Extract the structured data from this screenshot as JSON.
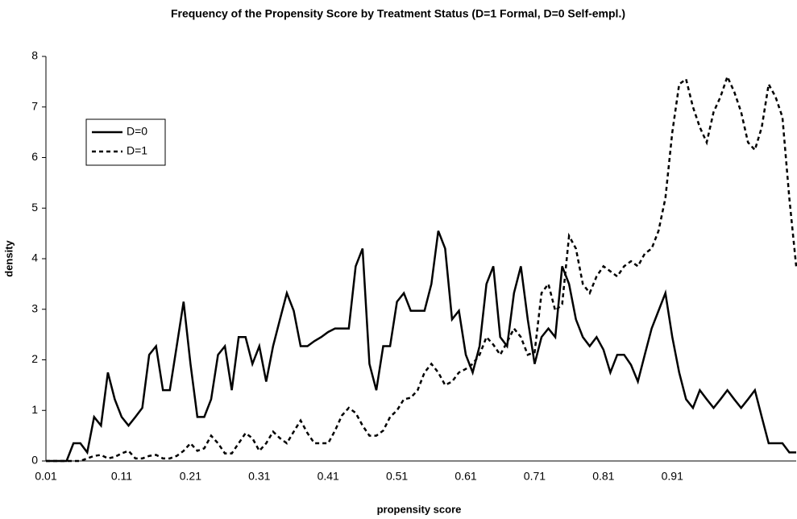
{
  "chart_data": {
    "type": "line",
    "title": "Frequency of the  Propensity Score by Treatment Status (D=1 Formal, D=0 Self-empl.)",
    "x_label": "propensity score",
    "y_label": "density",
    "categories": [
      "0.01",
      null,
      null,
      null,
      null,
      null,
      null,
      null,
      null,
      null,
      null,
      "0.11",
      null,
      null,
      null,
      null,
      null,
      null,
      null,
      null,
      null,
      "0.21",
      null,
      null,
      null,
      null,
      null,
      null,
      null,
      null,
      null,
      "0.31",
      null,
      null,
      null,
      null,
      null,
      null,
      null,
      null,
      null,
      "0.41",
      null,
      null,
      null,
      null,
      null,
      null,
      null,
      null,
      null,
      "0.51",
      null,
      null,
      null,
      null,
      null,
      null,
      null,
      null,
      null,
      "0.61",
      null,
      null,
      null,
      null,
      null,
      null,
      null,
      null,
      null,
      "0.71",
      null,
      null,
      null,
      null,
      null,
      null,
      null,
      null,
      null,
      "0.81",
      null,
      null,
      null,
      null,
      null,
      null,
      null,
      null,
      null,
      "0.91",
      null,
      null,
      null,
      null,
      null,
      null,
      null,
      null,
      null,
      null,
      null,
      null,
      null,
      null,
      null,
      null,
      null,
      null
    ],
    "series": [
      {
        "name": "D=0",
        "color": "#000000",
        "line_style": "solid",
        "values": [
          0,
          0,
          0,
          0,
          0.35,
          0.35,
          0.17,
          0.87,
          0.7,
          1.75,
          1.22,
          0.87,
          0.7,
          0.87,
          1.05,
          2.1,
          2.27,
          1.4,
          1.4,
          2.27,
          3.15,
          1.92,
          0.87,
          0.87,
          1.22,
          2.1,
          2.27,
          1.4,
          2.45,
          2.45,
          1.92,
          2.27,
          1.57,
          2.27,
          2.8,
          3.32,
          2.97,
          2.27,
          2.27,
          2.37,
          2.45,
          2.55,
          2.62,
          2.62,
          2.62,
          3.85,
          4.2,
          1.92,
          1.4,
          2.27,
          2.27,
          3.15,
          3.32,
          2.97,
          2.97,
          2.97,
          3.5,
          4.55,
          4.2,
          2.8,
          2.97,
          2.1,
          1.75,
          2.27,
          3.5,
          3.85,
          2.45,
          2.27,
          3.32,
          3.85,
          2.8,
          1.92,
          2.45,
          2.62,
          2.45,
          3.85,
          3.5,
          2.8,
          2.45,
          2.27,
          2.45,
          2.2,
          1.75,
          2.1,
          2.1,
          1.9,
          1.57,
          2.1,
          2.62,
          2.97,
          3.32,
          2.45,
          1.75,
          1.22,
          1.05,
          1.4,
          1.22,
          1.05,
          1.22,
          1.4,
          1.22,
          1.05,
          1.22,
          1.4,
          0.87,
          0.35,
          0.35,
          0.35,
          0.17,
          0.17
        ]
      },
      {
        "name": "D=1",
        "color": "#000000",
        "line_style": "dashed",
        "values": [
          0,
          0,
          0,
          0,
          0,
          0,
          0.05,
          0.1,
          0.12,
          0.05,
          0.08,
          0.15,
          0.2,
          0.05,
          0.05,
          0.1,
          0.12,
          0.05,
          0.05,
          0.1,
          0.2,
          0.35,
          0.2,
          0.25,
          0.5,
          0.35,
          0.15,
          0.15,
          0.35,
          0.55,
          0.45,
          0.2,
          0.35,
          0.58,
          0.45,
          0.35,
          0.58,
          0.8,
          0.55,
          0.35,
          0.35,
          0.35,
          0.6,
          0.9,
          1.05,
          0.95,
          0.7,
          0.5,
          0.5,
          0.6,
          0.87,
          1.0,
          1.22,
          1.25,
          1.4,
          1.75,
          1.92,
          1.75,
          1.5,
          1.57,
          1.75,
          1.82,
          1.92,
          2.1,
          2.45,
          2.3,
          2.1,
          2.35,
          2.62,
          2.45,
          2.1,
          2.15,
          3.32,
          3.5,
          2.97,
          3.1,
          4.45,
          4.2,
          3.5,
          3.32,
          3.65,
          3.85,
          3.75,
          3.65,
          3.85,
          3.95,
          3.85,
          4.1,
          4.2,
          4.55,
          5.2,
          6.5,
          7.45,
          7.55,
          7.0,
          6.6,
          6.3,
          6.9,
          7.2,
          7.6,
          7.3,
          6.9,
          6.3,
          6.15,
          6.6,
          7.45,
          7.2,
          6.8,
          5.2,
          3.85
        ]
      }
    ],
    "ylim": [
      0,
      8
    ],
    "yticks": [
      0,
      1,
      2,
      3,
      4,
      5,
      6,
      7,
      8
    ],
    "grid": false,
    "legend_position": "upper left"
  }
}
